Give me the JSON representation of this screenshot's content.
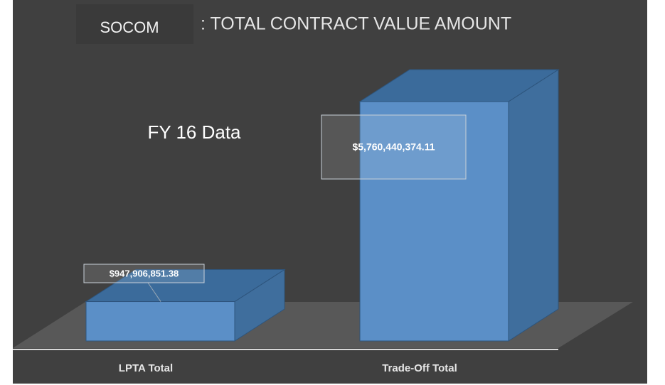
{
  "chart_data": {
    "type": "bar3d",
    "title": ": TOTAL CONTRACT VALUE AMOUNT",
    "annotations": [
      "SOCOM",
      "FY 16 Data"
    ],
    "categories": [
      "LPTA Total",
      "Trade-Off Total"
    ],
    "values": [
      947906851.38,
      5760440374.11
    ],
    "value_labels": [
      "$947,906,851.38",
      "$5,760,440,374.11"
    ],
    "color": "#5b8fc7"
  }
}
